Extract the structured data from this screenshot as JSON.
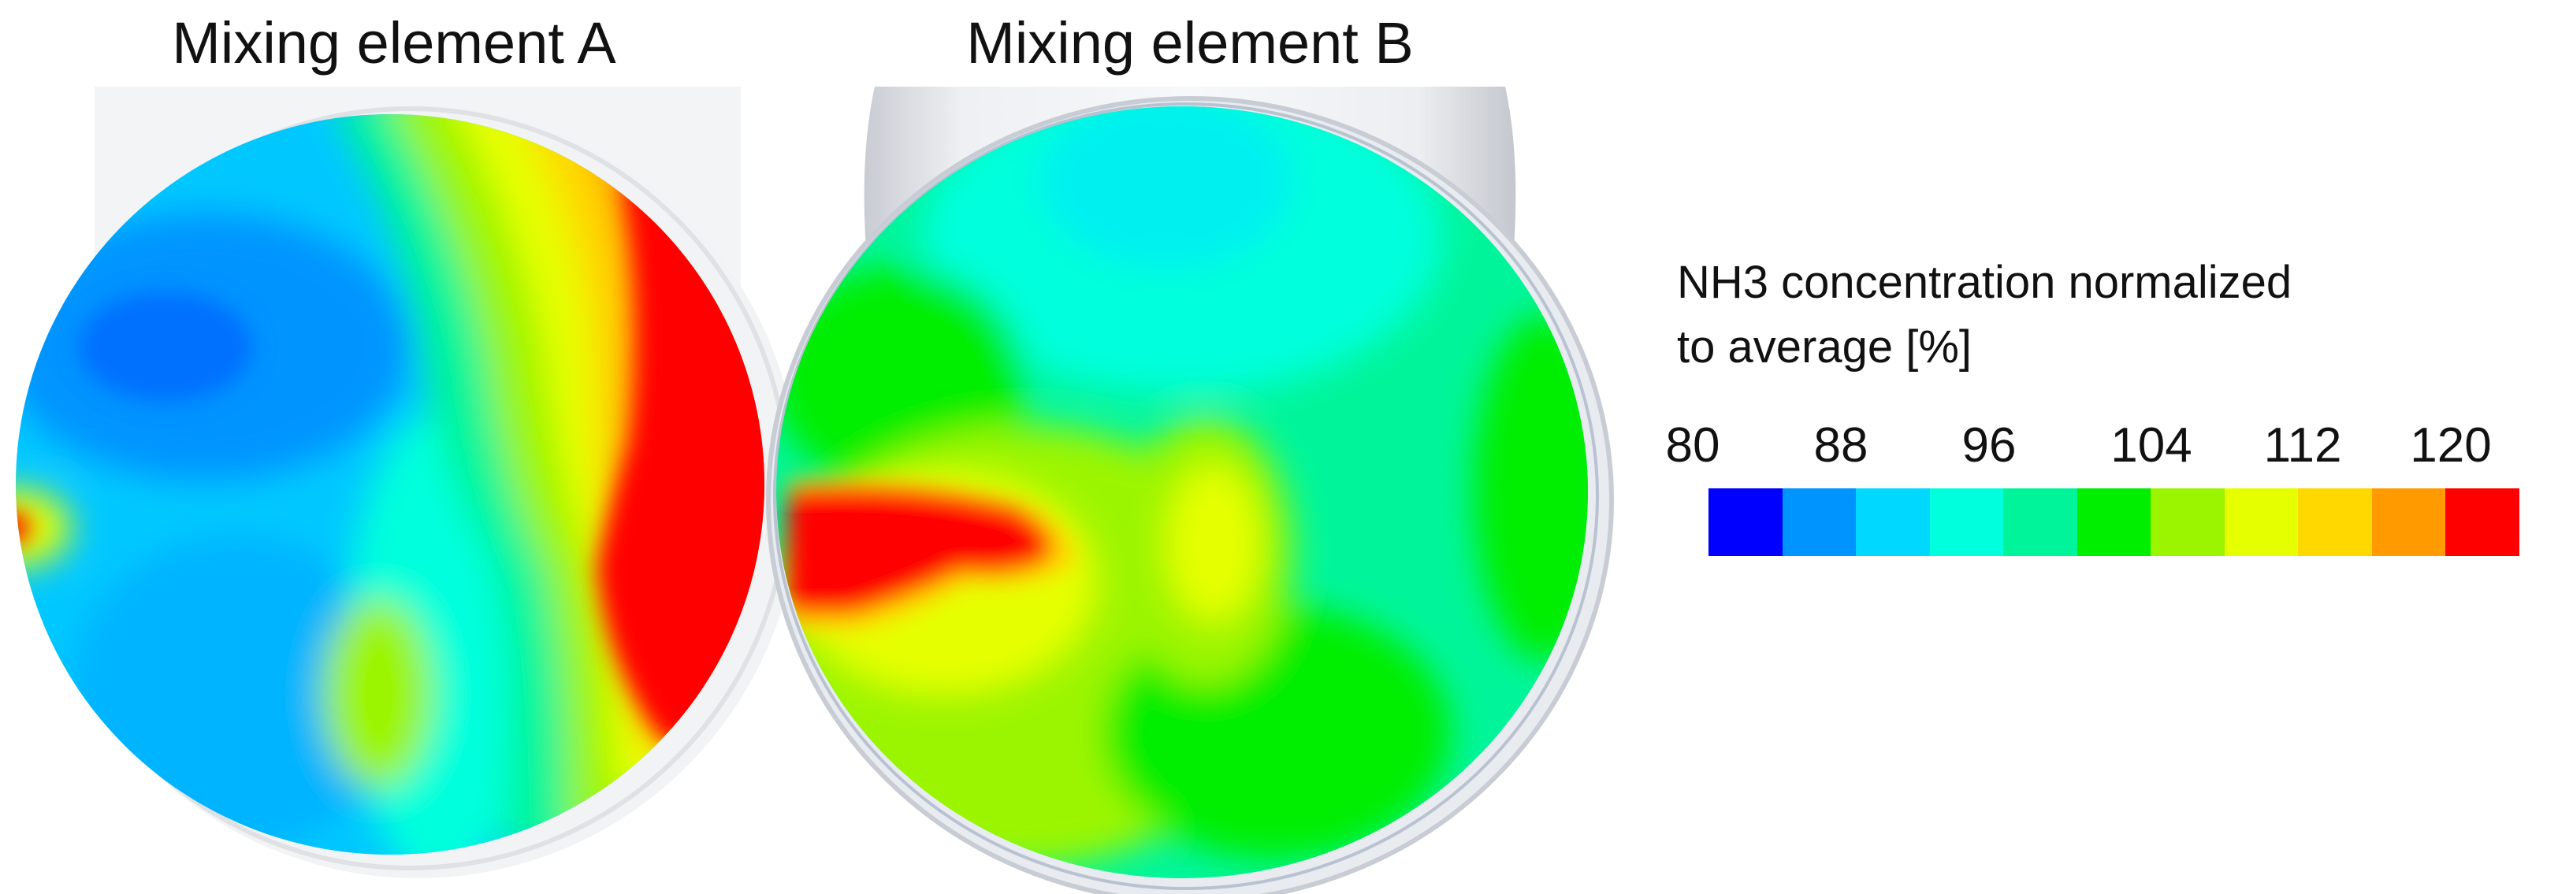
{
  "panels": [
    {
      "title": "Mixing element A"
    },
    {
      "title": "Mixing element B"
    }
  ],
  "legend": {
    "title_line1": "NH3 concentration normalized",
    "title_line2": "to average [%]",
    "ticks": [
      "80",
      "88",
      "96",
      "104",
      "112",
      "120"
    ],
    "colors": [
      "#0000ff",
      "#0094ff",
      "#00d8ff",
      "#00ffdc",
      "#00f59a",
      "#00ee00",
      "#9cf500",
      "#e6ff00",
      "#ffd800",
      "#ff9a00",
      "#ff0000"
    ]
  }
}
